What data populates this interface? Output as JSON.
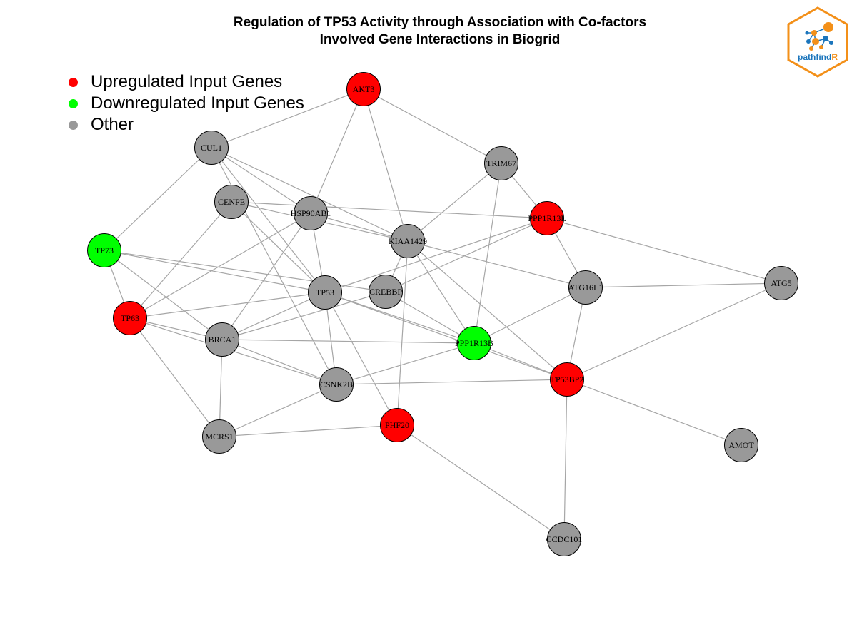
{
  "title": {
    "line1": "Regulation of TP53 Activity through Association with Co-factors",
    "line2": "Involved Gene Interactions in Biogrid"
  },
  "legend": [
    {
      "label": "Upregulated Input Genes",
      "color": "#ff0000"
    },
    {
      "label": "Downregulated Input Genes",
      "color": "#00ff00"
    },
    {
      "label": "Other",
      "color": "#999999"
    }
  ],
  "colors": {
    "up": "#ff0000",
    "down": "#00ff00",
    "other": "#999999",
    "edge": "#a6a6a6",
    "node_border": "#000000",
    "logo_orange": "#f39019",
    "logo_blue": "#1b75bc"
  },
  "logo": {
    "text_main": "pathfind",
    "text_accent": "R"
  },
  "network": {
    "nodes": [
      {
        "id": "AKT3",
        "status": "up"
      },
      {
        "id": "CUL1",
        "status": "other"
      },
      {
        "id": "TRIM67",
        "status": "other"
      },
      {
        "id": "CENPE",
        "status": "other"
      },
      {
        "id": "HSP90AB1",
        "status": "other"
      },
      {
        "id": "PPP1R13L",
        "status": "up"
      },
      {
        "id": "KIAA1429",
        "status": "other"
      },
      {
        "id": "TP73",
        "status": "down"
      },
      {
        "id": "TP53",
        "status": "other"
      },
      {
        "id": "CREBBP",
        "status": "other"
      },
      {
        "id": "ATG16L1",
        "status": "other"
      },
      {
        "id": "ATG5",
        "status": "other"
      },
      {
        "id": "TP63",
        "status": "up"
      },
      {
        "id": "BRCA1",
        "status": "other"
      },
      {
        "id": "PPP1R13B",
        "status": "down"
      },
      {
        "id": "TP53BP2",
        "status": "up"
      },
      {
        "id": "CSNK2B",
        "status": "other"
      },
      {
        "id": "PHF20",
        "status": "up"
      },
      {
        "id": "MCRS1",
        "status": "other"
      },
      {
        "id": "AMOT",
        "status": "other"
      },
      {
        "id": "CCDC101",
        "status": "other"
      }
    ],
    "edges": [
      [
        "AKT3",
        "CUL1"
      ],
      [
        "AKT3",
        "TRIM67"
      ],
      [
        "AKT3",
        "HSP90AB1"
      ],
      [
        "AKT3",
        "KIAA1429"
      ],
      [
        "CUL1",
        "TP73"
      ],
      [
        "CUL1",
        "HSP90AB1"
      ],
      [
        "CUL1",
        "KIAA1429"
      ],
      [
        "CUL1",
        "TP53"
      ],
      [
        "CUL1",
        "CSNK2B"
      ],
      [
        "TRIM67",
        "PPP1R13L"
      ],
      [
        "TRIM67",
        "KIAA1429"
      ],
      [
        "TRIM67",
        "PPP1R13B"
      ],
      [
        "CENPE",
        "PPP1R13L"
      ],
      [
        "CENPE",
        "KIAA1429"
      ],
      [
        "CENPE",
        "TP53"
      ],
      [
        "CENPE",
        "TP63"
      ],
      [
        "HSP90AB1",
        "KIAA1429"
      ],
      [
        "HSP90AB1",
        "TP53"
      ],
      [
        "HSP90AB1",
        "TP63"
      ],
      [
        "HSP90AB1",
        "BRCA1"
      ],
      [
        "PPP1R13L",
        "TP53"
      ],
      [
        "PPP1R13L",
        "CREBBP"
      ],
      [
        "PPP1R13L",
        "ATG16L1"
      ],
      [
        "PPP1R13L",
        "ATG5"
      ],
      [
        "KIAA1429",
        "CREBBP"
      ],
      [
        "KIAA1429",
        "ATG16L1"
      ],
      [
        "KIAA1429",
        "PPP1R13B"
      ],
      [
        "KIAA1429",
        "TP53BP2"
      ],
      [
        "KIAA1429",
        "PHF20"
      ],
      [
        "TP73",
        "TP53"
      ],
      [
        "TP73",
        "CREBBP"
      ],
      [
        "TP73",
        "TP63"
      ],
      [
        "TP73",
        "BRCA1"
      ],
      [
        "TP53",
        "TP63"
      ],
      [
        "TP53",
        "BRCA1"
      ],
      [
        "TP53",
        "CSNK2B"
      ],
      [
        "TP53",
        "PHF20"
      ],
      [
        "TP53",
        "PPP1R13B"
      ],
      [
        "TP53",
        "TP53BP2"
      ],
      [
        "CREBBP",
        "BRCA1"
      ],
      [
        "CREBBP",
        "PPP1R13B"
      ],
      [
        "ATG16L1",
        "ATG5"
      ],
      [
        "ATG16L1",
        "PPP1R13B"
      ],
      [
        "ATG16L1",
        "TP53BP2"
      ],
      [
        "ATG5",
        "TP53BP2"
      ],
      [
        "TP63",
        "BRCA1"
      ],
      [
        "TP63",
        "CSNK2B"
      ],
      [
        "TP63",
        "MCRS1"
      ],
      [
        "BRCA1",
        "PPP1R13B"
      ],
      [
        "BRCA1",
        "CSNK2B"
      ],
      [
        "BRCA1",
        "MCRS1"
      ],
      [
        "PPP1R13B",
        "TP53BP2"
      ],
      [
        "PPP1R13B",
        "CSNK2B"
      ],
      [
        "TP53BP2",
        "CSNK2B"
      ],
      [
        "TP53BP2",
        "AMOT"
      ],
      [
        "TP53BP2",
        "CCDC101"
      ],
      [
        "CSNK2B",
        "MCRS1"
      ],
      [
        "MCRS1",
        "PHF20"
      ],
      [
        "PHF20",
        "CCDC101"
      ]
    ]
  }
}
